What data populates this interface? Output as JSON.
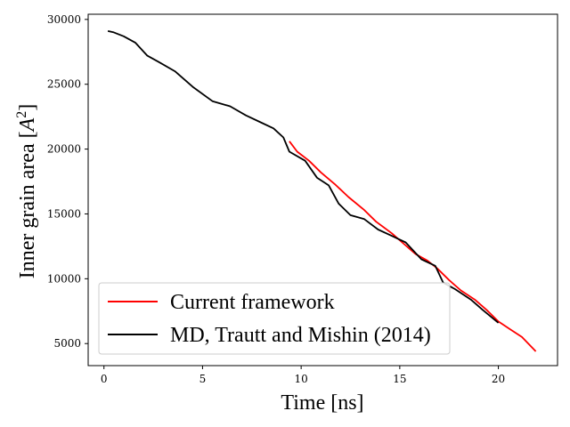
{
  "chart_data": {
    "type": "line",
    "xlabel": "Time [ns]",
    "ylabel_main": "Inner grain area [",
    "ylabel_var": "A",
    "ylabel_sup": "2",
    "ylabel_close": "]",
    "xlim": [
      -0.8,
      23.0
    ],
    "ylim": [
      3300,
      30400
    ],
    "xticks": [
      0,
      5,
      10,
      15,
      20
    ],
    "yticks": [
      5000,
      10000,
      15000,
      20000,
      25000,
      30000
    ],
    "legend_position": "lower-left",
    "series": [
      {
        "name": "Current framework",
        "color": "#ff0000",
        "points": [
          [
            9.4,
            20600
          ],
          [
            9.8,
            19800
          ],
          [
            10.4,
            19100
          ],
          [
            11.0,
            18200
          ],
          [
            11.7,
            17300
          ],
          [
            12.4,
            16300
          ],
          [
            13.2,
            15300
          ],
          [
            13.8,
            14400
          ],
          [
            14.6,
            13500
          ],
          [
            15.2,
            12700
          ],
          [
            15.8,
            11900
          ],
          [
            16.4,
            11400
          ],
          [
            16.9,
            10800
          ],
          [
            17.5,
            9900
          ],
          [
            18.1,
            9100
          ],
          [
            18.8,
            8400
          ],
          [
            19.4,
            7600
          ],
          [
            20.0,
            6700
          ],
          [
            20.6,
            6100
          ],
          [
            21.2,
            5500
          ],
          [
            21.9,
            4400
          ]
        ]
      },
      {
        "name": "MD, Trautt and Mishin (2014)",
        "color": "#000000",
        "points": [
          [
            0.2,
            29100
          ],
          [
            0.5,
            29000
          ],
          [
            1.0,
            28700
          ],
          [
            1.6,
            28200
          ],
          [
            2.2,
            27200
          ],
          [
            2.8,
            26700
          ],
          [
            3.6,
            26000
          ],
          [
            4.5,
            24800
          ],
          [
            5.5,
            23700
          ],
          [
            6.4,
            23300
          ],
          [
            7.2,
            22600
          ],
          [
            7.9,
            22100
          ],
          [
            8.6,
            21600
          ],
          [
            9.1,
            20900
          ],
          [
            9.4,
            19800
          ],
          [
            10.2,
            19100
          ],
          [
            10.8,
            17800
          ],
          [
            11.4,
            17200
          ],
          [
            11.9,
            15800
          ],
          [
            12.5,
            14900
          ],
          [
            13.2,
            14600
          ],
          [
            13.9,
            13800
          ],
          [
            14.6,
            13300
          ],
          [
            15.3,
            12800
          ],
          [
            16.1,
            11500
          ],
          [
            16.8,
            11000
          ],
          [
            17.2,
            9700
          ],
          [
            17.8,
            9200
          ],
          [
            18.6,
            8400
          ],
          [
            19.2,
            7600
          ],
          [
            20.0,
            6600
          ]
        ]
      }
    ]
  }
}
